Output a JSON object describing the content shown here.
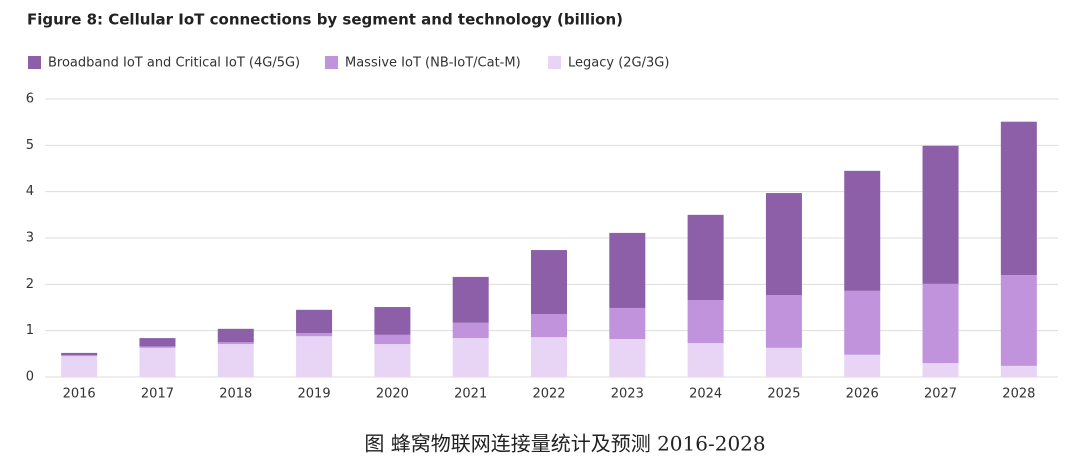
{
  "chart_data": {
    "type": "stacked_bar",
    "title": "Figure 8: Cellular IoT connections by segment and technology (billion)",
    "caption": "图 蜂窝物联网连接量统计及预测 2016-2028",
    "categories": [
      "2016",
      "2017",
      "2018",
      "2019",
      "2020",
      "2021",
      "2022",
      "2023",
      "2024",
      "2025",
      "2026",
      "2027",
      "2028"
    ],
    "series": [
      {
        "name": "Broadband IoT and Critical IoT (4G/5G)",
        "color": "#8c5fa8",
        "values": [
          0.05,
          0.18,
          0.29,
          0.5,
          0.6,
          0.99,
          1.38,
          1.62,
          1.84,
          2.2,
          2.59,
          2.98,
          3.31
        ]
      },
      {
        "name": "Massive IoT (NB-IoT/Cat-M)",
        "color": "#c093dc",
        "values": [
          0.02,
          0.03,
          0.04,
          0.07,
          0.2,
          0.33,
          0.5,
          0.67,
          0.93,
          1.14,
          1.38,
          1.71,
          1.96
        ]
      },
      {
        "name": "Legacy (2G/3G)",
        "color": "#e8d5f5",
        "values": [
          0.45,
          0.63,
          0.71,
          0.88,
          0.71,
          0.84,
          0.86,
          0.82,
          0.73,
          0.63,
          0.48,
          0.3,
          0.24
        ]
      }
    ],
    "stack_order": "bottom-up from last series",
    "ylim": [
      0,
      6
    ],
    "yticks": [
      0,
      1,
      2,
      3,
      4,
      5,
      6
    ],
    "grid": true
  }
}
